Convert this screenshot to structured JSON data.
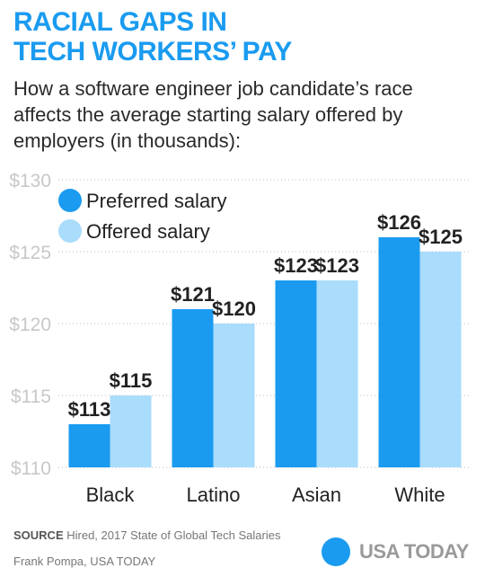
{
  "header": {
    "title_line1": "RACIAL GAPS IN",
    "title_line2": "TECH WORKERS’ PAY",
    "subtitle": "How a software engineer job candidate’s race affects the average starting salary offered by employers (in thousands):"
  },
  "footer": {
    "source_label": "SOURCE",
    "source_text": " Hired, 2017 State of Global Tech Salaries",
    "credit": "Frank Pompa, USA TODAY",
    "brand": "USA TODAY",
    "brand_color": "#1a9bf0"
  },
  "chart_data": {
    "type": "bar",
    "categories": [
      "Black",
      "Latino",
      "Asian",
      "White"
    ],
    "series": [
      {
        "name": "Preferred salary",
        "color": "#1a9bf0",
        "values": [
          113,
          121,
          123,
          126
        ]
      },
      {
        "name": "Offered salary",
        "color": "#aadcfb",
        "values": [
          115,
          120,
          123,
          125
        ]
      }
    ],
    "value_labels": [
      [
        "$113",
        "$121",
        "$123",
        "$126"
      ],
      [
        "$115",
        "$120",
        "$123",
        "$125"
      ]
    ],
    "yticks": [
      110,
      115,
      120,
      125,
      130
    ],
    "ytick_labels": [
      "$110",
      "$115",
      "$120",
      "$125",
      "$130"
    ],
    "ylim": [
      110,
      130
    ],
    "grid": true,
    "legend_position": "top-left",
    "title": "",
    "xlabel": "",
    "ylabel": ""
  }
}
